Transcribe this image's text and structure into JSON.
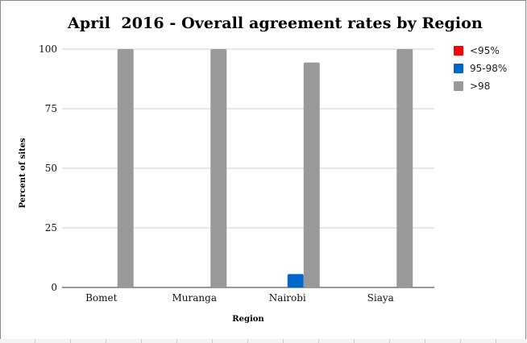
{
  "chart_data": {
    "type": "bar",
    "title": "April  2016 - Overall agreement rates by Region",
    "xlabel": "Region",
    "ylabel": "Percent of sites",
    "categories": [
      "Bomet",
      "Muranga",
      "Nairobi",
      "Siaya"
    ],
    "ylim": [
      0,
      100
    ],
    "yticks": [
      0,
      25,
      50,
      75,
      100
    ],
    "grid": true,
    "legend_position": "right",
    "series": [
      {
        "name": "<95%",
        "color": "#ff0000",
        "values": [
          0,
          0,
          0,
          0
        ]
      },
      {
        "name": "95-98%",
        "color": "#0066cc",
        "values": [
          0,
          0,
          5.6,
          0
        ]
      },
      {
        "name": ">98",
        "color": "#999999",
        "values": [
          100,
          100,
          94.4,
          100
        ]
      }
    ]
  }
}
